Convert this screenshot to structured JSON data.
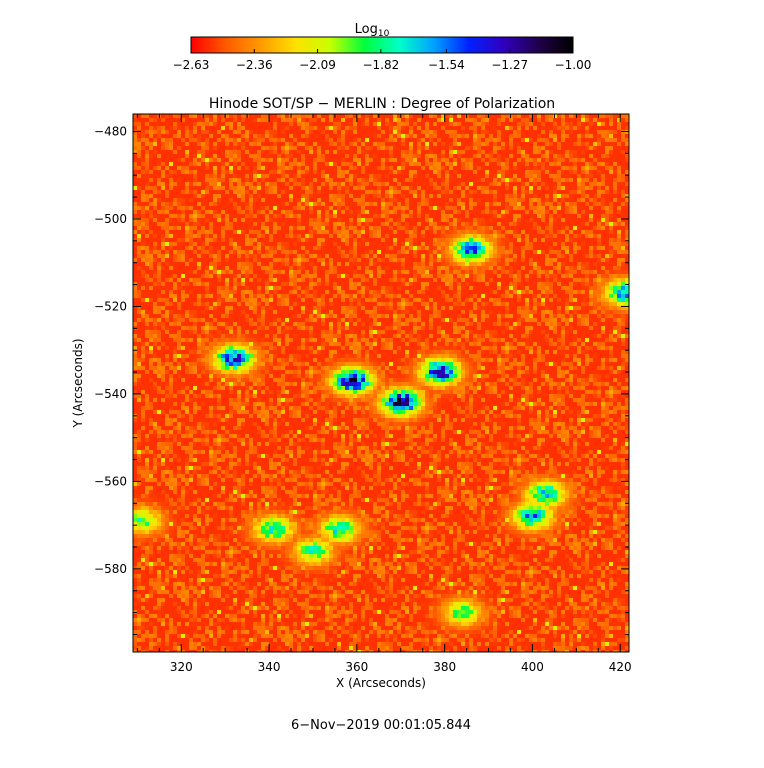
{
  "chart_data": {
    "type": "heatmap",
    "title": "Hinode SOT/SP − MERLIN : Degree of Polarization",
    "xlabel": "X (Arcseconds)",
    "ylabel": "Y (Arcseconds)",
    "xlim": [
      309,
      422
    ],
    "ylim": [
      -599,
      -476
    ],
    "x_ticks": [
      320,
      340,
      360,
      380,
      400,
      420
    ],
    "x_tick_labels": [
      "320",
      "340",
      "360",
      "380",
      "400",
      "420"
    ],
    "y_ticks": [
      -480,
      -500,
      -520,
      -540,
      -560,
      -580
    ],
    "y_tick_labels": [
      "−480",
      "−500",
      "−520",
      "−540",
      "−560",
      "−580"
    ],
    "colorbar": {
      "title": "Log",
      "title_subscript": "10",
      "range": [
        -2.63,
        -1.0
      ],
      "ticks": [
        -2.63,
        -2.36,
        -2.09,
        -1.82,
        -1.54,
        -1.27,
        -1.0
      ],
      "tick_labels": [
        "−2.63",
        "−2.36",
        "−2.09",
        "−1.82",
        "−1.54",
        "−1.27",
        "−1.00"
      ],
      "colors": [
        "#ff0000",
        "#ff5a00",
        "#ff9a00",
        "#ffe000",
        "#c8ff00",
        "#00ff3c",
        "#00ffc8",
        "#00a0ff",
        "#0020ff",
        "#3000c0",
        "#20004a",
        "#000000"
      ]
    },
    "background_value": -2.55,
    "strong_regions": [
      {
        "x": 359,
        "y": -537,
        "peak": -1.15
      },
      {
        "x": 370,
        "y": -542,
        "peak": -1.12
      },
      {
        "x": 379,
        "y": -535,
        "peak": -1.3
      },
      {
        "x": 332,
        "y": -532,
        "peak": -1.3
      },
      {
        "x": 386,
        "y": -507,
        "peak": -1.45
      },
      {
        "x": 400,
        "y": -568,
        "peak": -1.55
      },
      {
        "x": 403,
        "y": -563,
        "peak": -1.6
      },
      {
        "x": 341,
        "y": -571,
        "peak": -1.7
      },
      {
        "x": 356,
        "y": -571,
        "peak": -1.7
      },
      {
        "x": 350,
        "y": -576,
        "peak": -1.8
      },
      {
        "x": 421,
        "y": -517,
        "peak": -1.55
      },
      {
        "x": 384,
        "y": -590,
        "peak": -1.85
      },
      {
        "x": 311,
        "y": -569,
        "peak": -1.85
      }
    ]
  },
  "footer": {
    "timestamp": "6−Nov−2019 00:01:05.844"
  }
}
